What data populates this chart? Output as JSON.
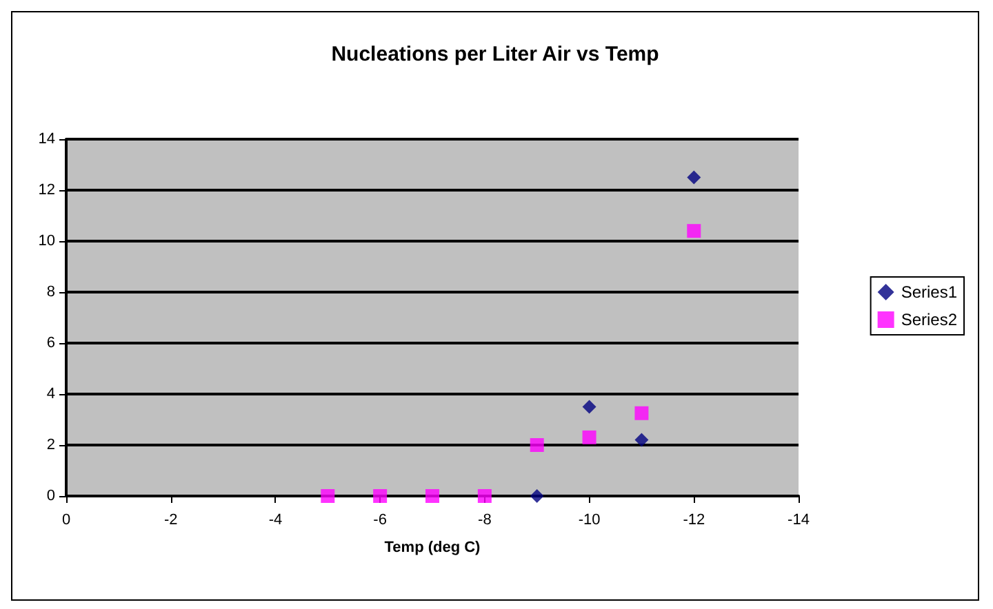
{
  "chart_data": {
    "type": "scatter",
    "title": "Nucleations per Liter Air vs Temp",
    "xlabel": "Temp (deg C)",
    "xlim": [
      0,
      -14
    ],
    "xticks": [
      0,
      -2,
      -4,
      -6,
      -8,
      -10,
      -12,
      -14
    ],
    "ylim": [
      0,
      14
    ],
    "yticks": [
      0,
      2,
      4,
      6,
      8,
      10,
      12,
      14
    ],
    "grid": "y",
    "legend": "right",
    "series": [
      {
        "name": "Series1",
        "color": "#000080",
        "marker": "diamond",
        "x": [
          -9,
          -10,
          -11,
          -12
        ],
        "values": [
          0,
          3.5,
          2.2,
          12.5
        ]
      },
      {
        "name": "Series2",
        "color": "#ff00ff",
        "marker": "square",
        "x": [
          -5,
          -6,
          -7,
          -8,
          -9,
          -10,
          -11,
          -12
        ],
        "values": [
          0,
          0,
          0,
          0,
          2.0,
          2.3,
          3.25,
          10.4
        ]
      }
    ]
  }
}
